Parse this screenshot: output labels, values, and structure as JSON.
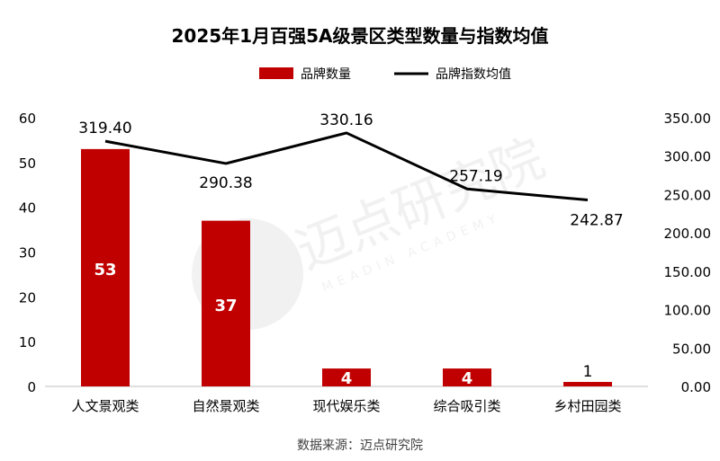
{
  "chart_data": {
    "type": "bar",
    "title": "2025年1月百强5A级景区类型数量与指数均值",
    "categories": [
      "人文景观类",
      "自然景观类",
      "现代娱乐类",
      "综合吸引类",
      "乡村田园类"
    ],
    "series": [
      {
        "name": "品牌数量",
        "type": "bar",
        "axis": "left",
        "values": [
          53,
          37,
          4,
          4,
          1
        ],
        "labels": [
          "53",
          "37",
          "4",
          "4",
          "1"
        ],
        "color": "#c00000"
      },
      {
        "name": "品牌指数均值",
        "type": "line",
        "axis": "right",
        "values": [
          319.4,
          290.38,
          330.16,
          257.19,
          242.87
        ],
        "labels": [
          "319.40",
          "290.38",
          "330.16",
          "257.19",
          "242.87"
        ],
        "color": "#000000"
      }
    ],
    "y_left": {
      "min": 0,
      "max": 60,
      "ticks": [
        0,
        10,
        20,
        30,
        40,
        50,
        60
      ],
      "tick_labels": [
        "0",
        "10",
        "20",
        "30",
        "40",
        "50",
        "60"
      ]
    },
    "y_right": {
      "min": 0,
      "max": 350,
      "ticks": [
        0,
        50,
        100,
        150,
        200,
        250,
        300,
        350
      ],
      "tick_labels": [
        "0.00",
        "50.00",
        "100.00",
        "150.00",
        "200.00",
        "250.00",
        "300.00",
        "350.00"
      ]
    },
    "legend": {
      "position": "top",
      "items": [
        "品牌数量",
        "品牌指数均值"
      ]
    },
    "grid": false,
    "source": "数据来源：迈点研究院",
    "watermark": {
      "text": "迈点研究院",
      "subtext": "MEADIN ACADEMY"
    }
  }
}
